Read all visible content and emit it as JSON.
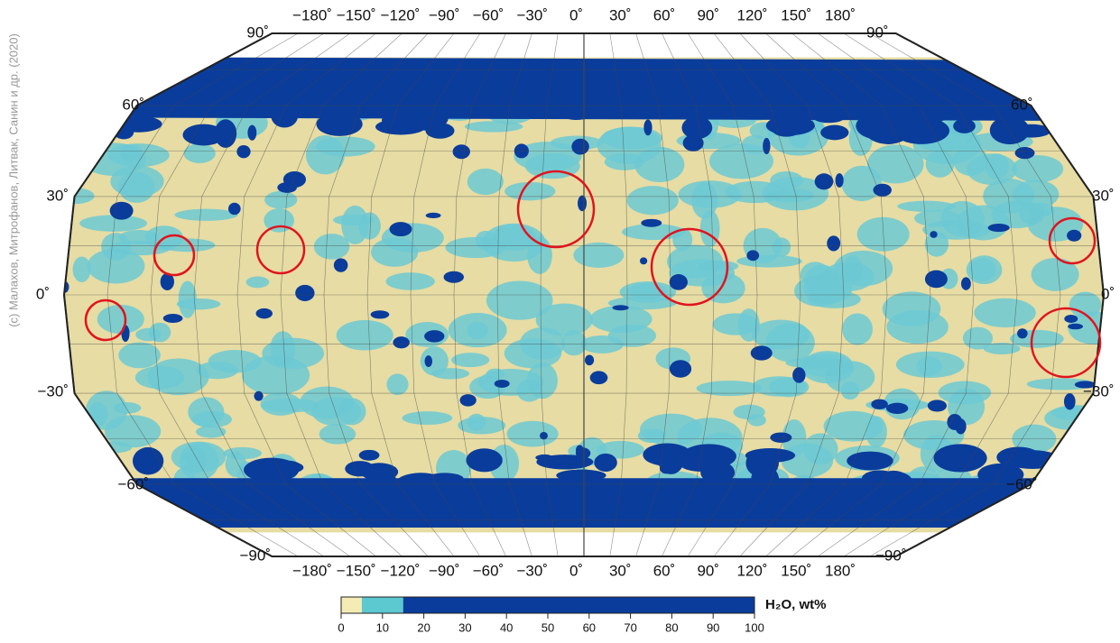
{
  "map": {
    "credit": "(c) Малахов, Митрофанов, Литвак, Санин и др. (2020)",
    "top_longitudes": [
      "−180˚",
      "−150˚",
      "−120˚",
      "−90˚",
      "−60˚",
      "−30˚",
      "0˚",
      "30˚",
      "60˚",
      "90˚",
      "120˚",
      "150˚",
      "180˚"
    ],
    "bottom_longitudes": [
      "−180˚",
      "−150˚",
      "−120˚",
      "−90˚",
      "−60˚",
      "−30˚",
      "0˚",
      "30˚",
      "60˚",
      "90˚",
      "120˚",
      "150˚",
      "180˚"
    ],
    "left_latitudes": [
      "90˚",
      "60˚",
      "30˚",
      "0˚",
      "−30˚",
      "−60˚",
      "−90˚"
    ],
    "right_latitudes": [
      "90˚",
      "60˚",
      "30˚",
      "0˚",
      "−30˚",
      "−60˚",
      "−90˚"
    ],
    "colorbar": {
      "label": "H₂O, wt%",
      "lim": [
        0,
        100
      ],
      "ticks": [
        0,
        10,
        20,
        30,
        40,
        50,
        60,
        70,
        80,
        90,
        100
      ],
      "classes": [
        {
          "from": 0,
          "to": 5,
          "color": "#f4ecb4"
        },
        {
          "from": 5,
          "to": 15,
          "color": "#5cc8d0"
        },
        {
          "from": 15,
          "to": 100,
          "color": "#0a3c9c"
        }
      ]
    }
  }
}
